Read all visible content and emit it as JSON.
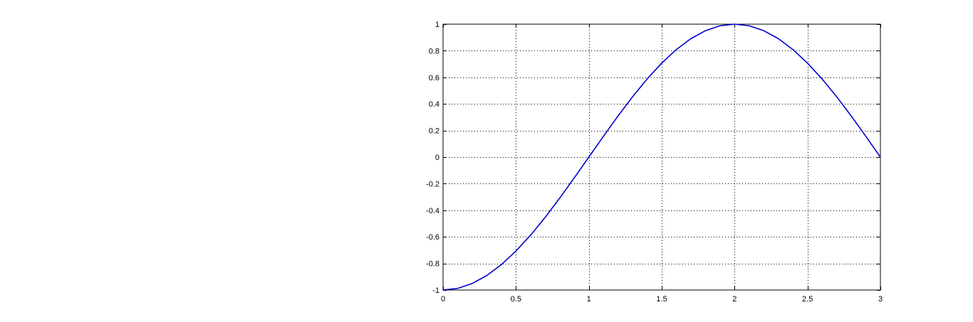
{
  "chart_data": {
    "type": "line",
    "title": "",
    "xlabel": "",
    "ylabel": "",
    "xlim": [
      0,
      3
    ],
    "ylim": [
      -1,
      1
    ],
    "grid": true,
    "grid_style": "dotted",
    "x_ticks": [
      0,
      0.5,
      1,
      1.5,
      2,
      2.5,
      3
    ],
    "x_tick_labels": [
      "0",
      "0.5",
      "1",
      "1.5",
      "2",
      "2.5",
      "3"
    ],
    "y_ticks": [
      -1,
      -0.8,
      -0.6,
      -0.4,
      -0.2,
      0,
      0.2,
      0.4,
      0.6,
      0.8,
      1
    ],
    "y_tick_labels": [
      "-1",
      "-0.8",
      "-0.6",
      "-0.4",
      "-0.2",
      "0",
      "0.2",
      "0.4",
      "0.6",
      "0.8",
      "1"
    ],
    "series": [
      {
        "color": "#0000cc",
        "x": [
          0,
          0.1,
          0.2,
          0.3,
          0.4,
          0.5,
          0.6,
          0.7,
          0.8,
          0.9,
          1.0,
          1.1,
          1.2,
          1.3,
          1.4,
          1.5,
          1.6,
          1.7,
          1.8,
          1.9,
          2.0,
          2.1,
          2.2,
          2.3,
          2.4,
          2.5,
          2.6,
          2.7,
          2.8,
          2.9,
          3.0
        ],
        "y": [
          -1.0,
          -0.988,
          -0.951,
          -0.891,
          -0.809,
          -0.707,
          -0.588,
          -0.454,
          -0.309,
          -0.156,
          0.0,
          0.156,
          0.309,
          0.454,
          0.588,
          0.707,
          0.809,
          0.891,
          0.951,
          0.988,
          1.0,
          0.988,
          0.951,
          0.891,
          0.809,
          0.707,
          0.588,
          0.454,
          0.309,
          0.156,
          0.0
        ]
      }
    ]
  }
}
